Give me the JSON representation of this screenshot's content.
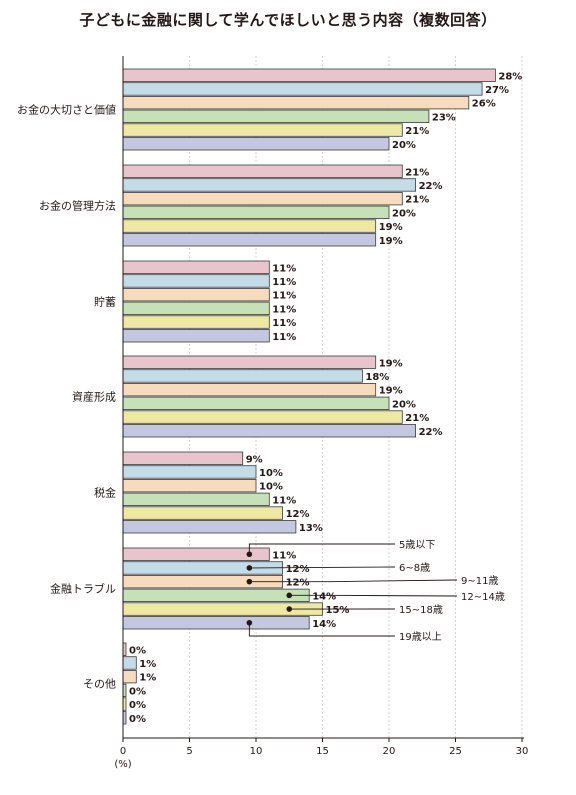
{
  "chart_data": {
    "type": "bar",
    "orientation": "horizontal",
    "title": "子どもに金融に関して学んでほしいと思う内容（複数回答）",
    "unit_label": "(%)",
    "xlim": [
      0,
      30
    ],
    "x_ticks": [
      0,
      5,
      10,
      15,
      20,
      25,
      30
    ],
    "grid": true,
    "categories": [
      "お金の大切さと価値",
      "お金の管理方法",
      "貯蓄",
      "資産形成",
      "税金",
      "金融トラブル",
      "その他"
    ],
    "series": [
      {
        "name": "5歳以下",
        "color": "#e8c4cc",
        "values": [
          28,
          21,
          11,
          19,
          9,
          11,
          0
        ]
      },
      {
        "name": "6~8歳",
        "color": "#c4dbe8",
        "values": [
          27,
          22,
          11,
          18,
          10,
          12,
          1
        ]
      },
      {
        "name": "9~11歳",
        "color": "#f6dcbc",
        "values": [
          26,
          21,
          11,
          19,
          10,
          12,
          1
        ]
      },
      {
        "name": "12~14歳",
        "color": "#c6e0b8",
        "values": [
          23,
          20,
          11,
          20,
          11,
          14,
          0
        ]
      },
      {
        "name": "15~18歳",
        "color": "#eee9a2",
        "values": [
          21,
          19,
          11,
          21,
          12,
          15,
          0
        ]
      },
      {
        "name": "19歳以上",
        "color": "#c4c7e0",
        "values": [
          20,
          19,
          11,
          22,
          13,
          14,
          0
        ]
      }
    ],
    "value_suffix": "%",
    "legend_location": "callouts on 金融トラブル group"
  }
}
